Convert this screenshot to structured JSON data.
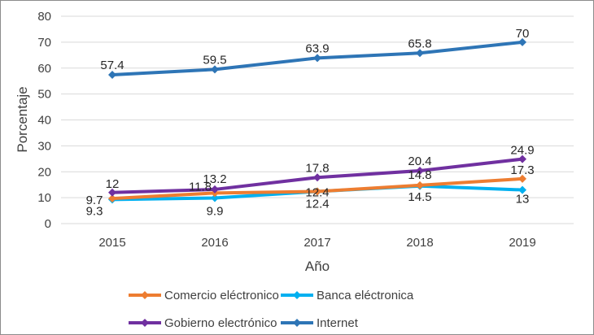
{
  "chart_data": {
    "type": "line",
    "title": "",
    "xlabel": "Año",
    "ylabel": "Porcentaje",
    "categories": [
      "2015",
      "2016",
      "2017",
      "2018",
      "2019"
    ],
    "ylim": [
      0,
      80
    ],
    "yticks": [
      "0",
      "10",
      "20",
      "30",
      "40",
      "50",
      "60",
      "70",
      "80"
    ],
    "grid": true,
    "legend_position": "bottom",
    "series": [
      {
        "name": "Comercio eléctronico",
        "color": "#ED7D31",
        "values": [
          9.7,
          11.8,
          12.4,
          14.8,
          17.3
        ],
        "labels": [
          "9.7",
          "11.8",
          "12.4",
          "14.8",
          "17.3"
        ]
      },
      {
        "name": "Banca eléctronica",
        "color": "#00B0F0",
        "values": [
          9.3,
          9.9,
          12.4,
          14.5,
          13
        ],
        "labels": [
          "9.3",
          "9.9",
          "12.4",
          "14.5",
          "13"
        ]
      },
      {
        "name": "Gobierno electrónico",
        "color": "#7030A0",
        "values": [
          12,
          13.2,
          17.8,
          20.4,
          24.9
        ],
        "labels": [
          "12",
          "13.2",
          "17.8",
          "20.4",
          "24.9"
        ]
      },
      {
        "name": "Internet",
        "color": "#2E75B6",
        "values": [
          57.4,
          59.5,
          63.9,
          65.8,
          70
        ],
        "labels": [
          "57.4",
          "59.5",
          "63.9",
          "65.8",
          "70"
        ]
      }
    ]
  }
}
